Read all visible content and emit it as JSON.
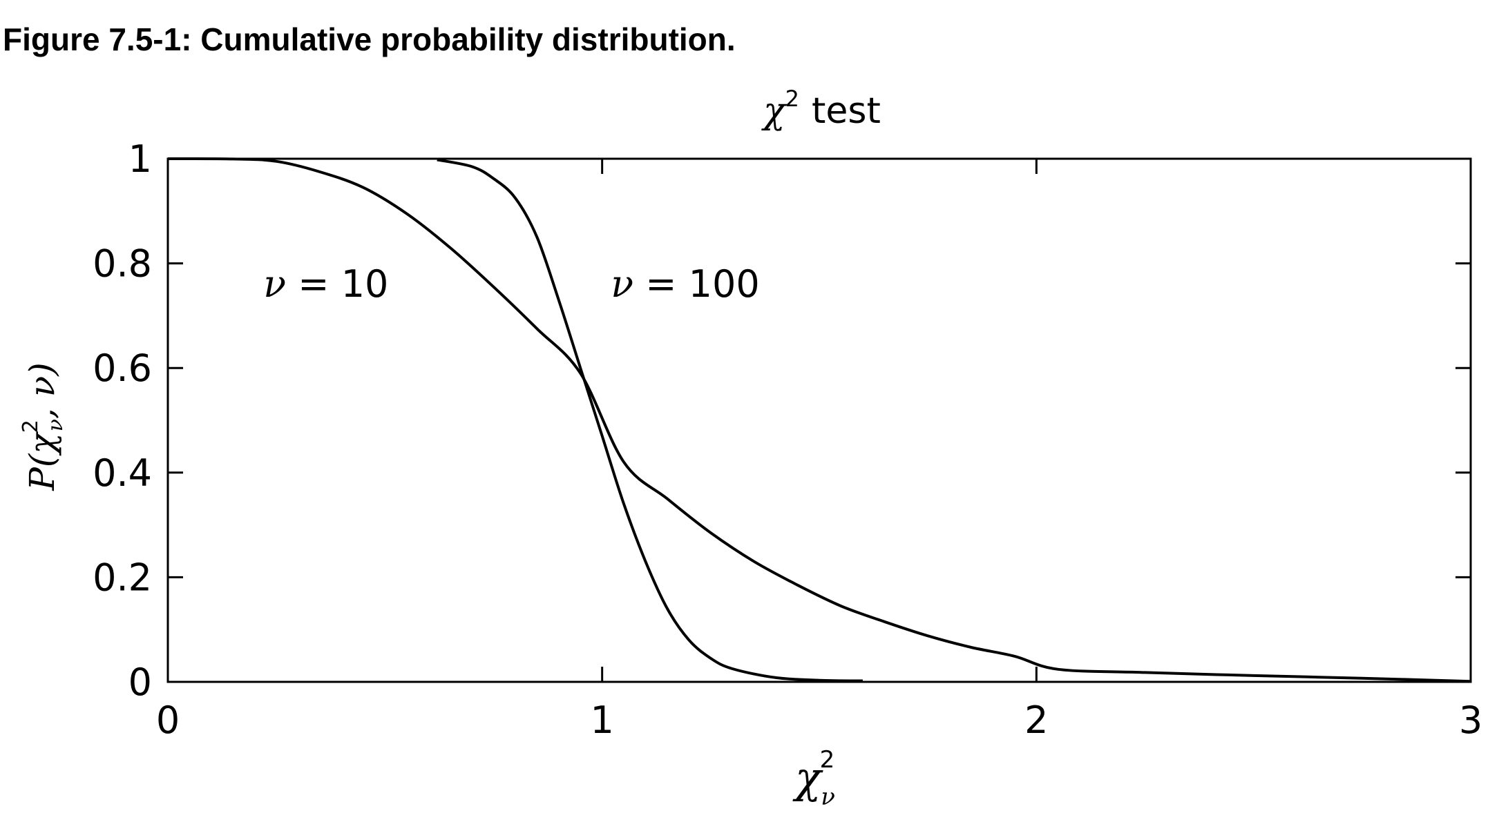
{
  "figure_caption": "Figure 7.5-1: Cumulative probability distribution.",
  "chart_data": {
    "type": "line",
    "title": {
      "symbol": "χ",
      "superscript": "2",
      "text": "test"
    },
    "xlabel": {
      "symbol": "χ",
      "superscript": "2",
      "subscript": "ν"
    },
    "ylabel": {
      "prefix": "P(",
      "symbol": "χ",
      "superscript": "2",
      "subscript": "ν",
      "suffix": ", ν)"
    },
    "xlim": [
      0,
      3
    ],
    "ylim": [
      0,
      1
    ],
    "xticks": [
      0,
      1,
      2,
      3
    ],
    "xtick_labels": [
      "0",
      "1",
      "2",
      "3"
    ],
    "yticks": [
      0,
      0.2,
      0.4,
      0.6,
      0.8,
      1
    ],
    "ytick_labels": [
      "0",
      "0.2",
      "0.4",
      "0.6",
      "0.8",
      "1"
    ],
    "grid": false,
    "series": [
      {
        "points": [
          [
            0.0,
            1.0
          ],
          [
            0.15,
            0.9995
          ],
          [
            0.25,
            0.995
          ],
          [
            0.35,
            0.975
          ],
          [
            0.45,
            0.945
          ],
          [
            0.55,
            0.895
          ],
          [
            0.65,
            0.83
          ],
          [
            0.75,
            0.755
          ],
          [
            0.85,
            0.675
          ],
          [
            0.95,
            0.59
          ],
          [
            1.05,
            0.42
          ],
          [
            1.15,
            0.35
          ],
          [
            1.25,
            0.285
          ],
          [
            1.35,
            0.23
          ],
          [
            1.45,
            0.185
          ],
          [
            1.55,
            0.145
          ],
          [
            1.65,
            0.115
          ],
          [
            1.75,
            0.088
          ],
          [
            1.85,
            0.066
          ],
          [
            1.95,
            0.049
          ],
          [
            2.05,
            0.024
          ],
          [
            2.25,
            0.018
          ],
          [
            2.5,
            0.012
          ],
          [
            2.75,
            0.007
          ],
          [
            3.0,
            0.001
          ]
        ]
      },
      {
        "points": [
          [
            0.62,
            0.998
          ],
          [
            0.7,
            0.985
          ],
          [
            0.75,
            0.962
          ],
          [
            0.8,
            0.925
          ],
          [
            0.85,
            0.85
          ],
          [
            0.9,
            0.73
          ],
          [
            0.95,
            0.6
          ],
          [
            1.0,
            0.47
          ],
          [
            1.05,
            0.34
          ],
          [
            1.1,
            0.23
          ],
          [
            1.15,
            0.14
          ],
          [
            1.2,
            0.08
          ],
          [
            1.25,
            0.045
          ],
          [
            1.3,
            0.025
          ],
          [
            1.4,
            0.008
          ],
          [
            1.5,
            0.003
          ],
          [
            1.6,
            0.002
          ]
        ]
      }
    ],
    "annotations": [
      {
        "symbol": "ν",
        "text": " = 10",
        "x": 0.22,
        "y": 0.76
      },
      {
        "symbol": "ν",
        "text": " = 100",
        "x": 1.02,
        "y": 0.76
      }
    ]
  }
}
